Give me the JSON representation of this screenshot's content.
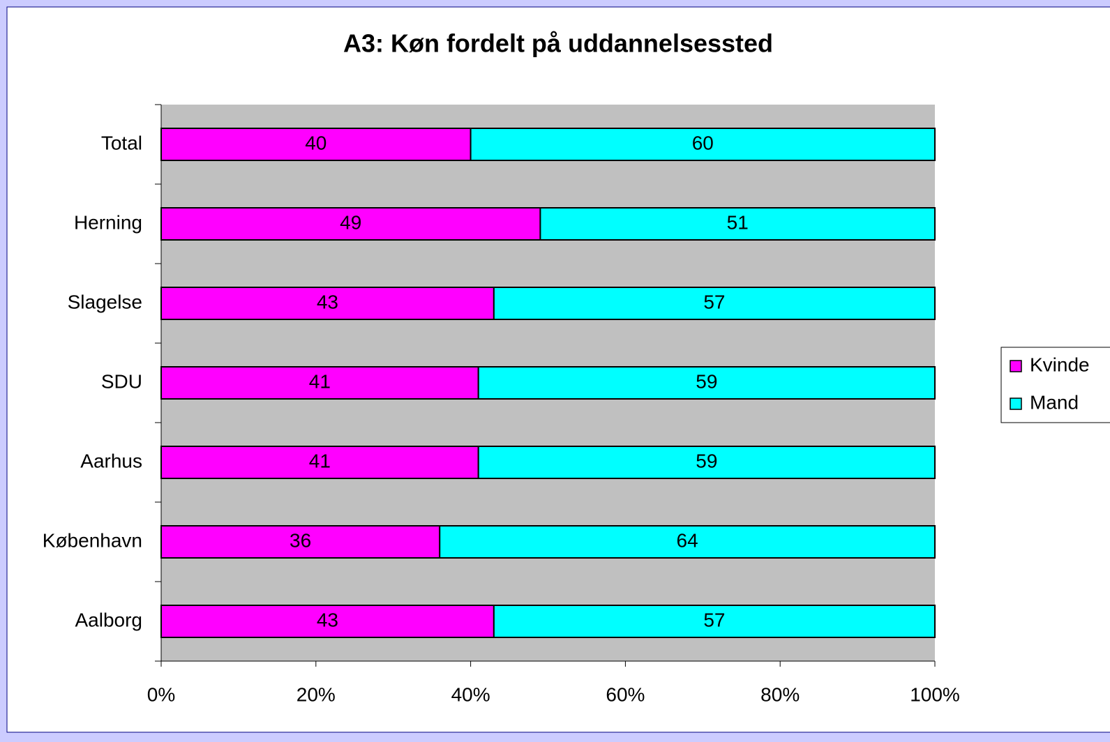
{
  "chart_data": {
    "type": "stacked-bar-horizontal",
    "title": "A3: Køn fordelt på uddannelsessted",
    "categories": [
      "Total",
      "Herning",
      "Slagelse",
      "SDU",
      "Aarhus",
      "København",
      "Aalborg"
    ],
    "series": [
      {
        "name": "Kvinde",
        "color": "#ff00ff",
        "values": [
          40,
          49,
          43,
          41,
          41,
          36,
          43
        ]
      },
      {
        "name": "Mand",
        "color": "#00ffff",
        "values": [
          60,
          51,
          57,
          59,
          59,
          64,
          57
        ]
      }
    ],
    "xlim": [
      0,
      100
    ],
    "xticks": [
      {
        "value": 0,
        "label": "0%"
      },
      {
        "value": 20,
        "label": "20%"
      },
      {
        "value": 40,
        "label": "40%"
      },
      {
        "value": 60,
        "label": "60%"
      },
      {
        "value": 80,
        "label": "80%"
      },
      {
        "value": 100,
        "label": "100%"
      }
    ],
    "legend": "right",
    "plot_background": "#c0c0c0"
  }
}
